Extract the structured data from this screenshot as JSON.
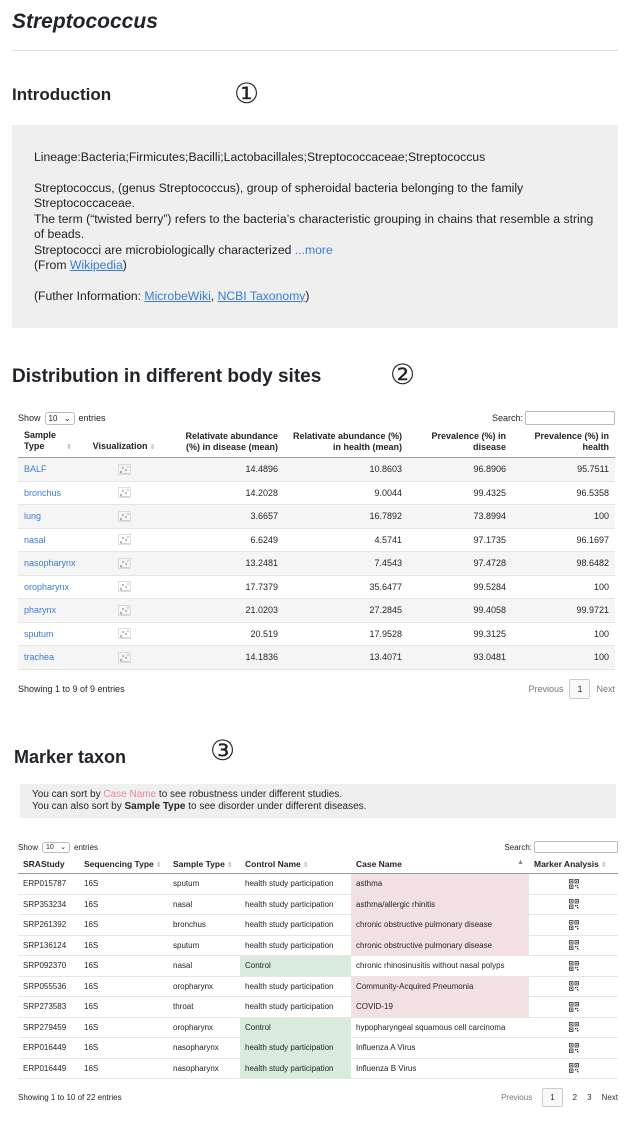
{
  "header": {
    "title": "Streptococcus"
  },
  "sections": {
    "intro": "Introduction",
    "intro_marker": "①",
    "distribution": "Distribution in different body sites",
    "distribution_marker": "②",
    "marker": "Marker taxon",
    "marker_marker": "③"
  },
  "intro": {
    "lineage": "Lineage:Bacteria;Firmicutes;Bacilli;Lactobacillales;Streptococcaceae;Streptococcus",
    "p1": "Streptococcus, (genus Streptococcus), group of spheroidal bacteria belonging to the family Streptococcaceae.",
    "p2": "The term (“twisted berry”) refers to the bacteria’s characteristic grouping in chains that resemble a string of beads.",
    "p3": "Streptococci are microbiologically characterized ",
    "more": "...more",
    "from_prefix": "(From ",
    "from_link": "Wikipedia",
    "from_suffix": ")",
    "further_prefix": "(Futher Information: ",
    "further_link1": "MicrobeWiki",
    "further_sep": ", ",
    "further_link2": "NCBI Taxonomy",
    "further_suffix": ")"
  },
  "distribution_table": {
    "show": "Show",
    "entries_value": "10",
    "entries": "entries",
    "search": "Search:",
    "columns": [
      "Sample Type",
      "Visualization",
      "Relativate abundance (%) in disease (mean)",
      "Relativate abundance (%) in health (mean)",
      "Prevalence (%) in disease",
      "Prevalence (%) in health"
    ],
    "rows": [
      [
        "BALF",
        "14.4896",
        "10.8603",
        "96.8906",
        "95.7511"
      ],
      [
        "bronchus",
        "14.2028",
        "9.0044",
        "99.4325",
        "96.5358"
      ],
      [
        "lung",
        "3.6657",
        "16.7892",
        "73.8994",
        "100"
      ],
      [
        "nasal",
        "6.6249",
        "4.5741",
        "97.1735",
        "96.1697"
      ],
      [
        "nasopharynx",
        "13.2481",
        "7.4543",
        "97.4728",
        "98.6482"
      ],
      [
        "oropharynx",
        "17.7379",
        "35.6477",
        "99.5284",
        "100"
      ],
      [
        "pharynx",
        "21.0203",
        "27.2845",
        "99.4058",
        "99.9721"
      ],
      [
        "sputum",
        "20.519",
        "17.9528",
        "99.3125",
        "100"
      ],
      [
        "trachea",
        "14.1836",
        "13.4071",
        "93.0481",
        "100"
      ]
    ],
    "info": "Showing 1 to 9 of 9 entries",
    "previous": "Previous",
    "page": "1",
    "next": "Next"
  },
  "marker_note": {
    "l1_a": "You can sort by ",
    "l1_b": "Case Name",
    "l1_c": " to see robustness under different studies.",
    "l2_a": "You can also sort by ",
    "l2_b": "Sample Type",
    "l2_c": " to see disorder under different diseases."
  },
  "marker_table": {
    "show": "Show",
    "entries_value": "10",
    "entries": "entries",
    "search": "Search:",
    "columns": [
      "SRAStudy",
      "Sequencing Type",
      "Sample Type",
      "Control Name",
      "Case Name",
      "Marker Analysis"
    ],
    "rows": [
      [
        "ERP015787",
        "16S",
        "sputum",
        "health study participation",
        "asthma"
      ],
      [
        "SRP353234",
        "16S",
        "nasal",
        "health study participation",
        "asthma/allergic rhinitis"
      ],
      [
        "SRP261392",
        "16S",
        "bronchus",
        "health study participation",
        "chronic obstructive pulmonary disease"
      ],
      [
        "SRP136124",
        "16S",
        "sputum",
        "health study participation",
        "chronic obstructive pulmonary disease"
      ],
      [
        "SRP092370",
        "16S",
        "nasal",
        "Control",
        "chronic rhinosinusitis without nasal polyps"
      ],
      [
        "SRP055536",
        "16S",
        "oropharynx",
        "health study participation",
        "Community-Acquired Pneumonia"
      ],
      [
        "SRP273583",
        "16S",
        "throat",
        "health study participation",
        "COVID-19"
      ],
      [
        "SRP279459",
        "16S",
        "oropharynx",
        "Control",
        "hypopharyngeal squamous cell carcinoma"
      ],
      [
        "ERP016449",
        "16S",
        "nasopharynx",
        "health study participation",
        "Influenza A Virus"
      ],
      [
        "ERP016449",
        "16S",
        "nasopharynx",
        "health study participation",
        "Influenza B Virus"
      ]
    ],
    "info": "Showing 1 to 10 of 22 entries",
    "previous": "Previous",
    "pages": [
      "1",
      "2",
      "3"
    ],
    "next": "Next"
  },
  "colors": {
    "link": "#3a7bd5",
    "highlight_pink": "#f2e0e3",
    "highlight_green": "#d9ebdd",
    "case_name_label": "#e58a9a"
  },
  "icons": {
    "visualization": "chart-icon",
    "marker_analysis": "qr-icon"
  }
}
